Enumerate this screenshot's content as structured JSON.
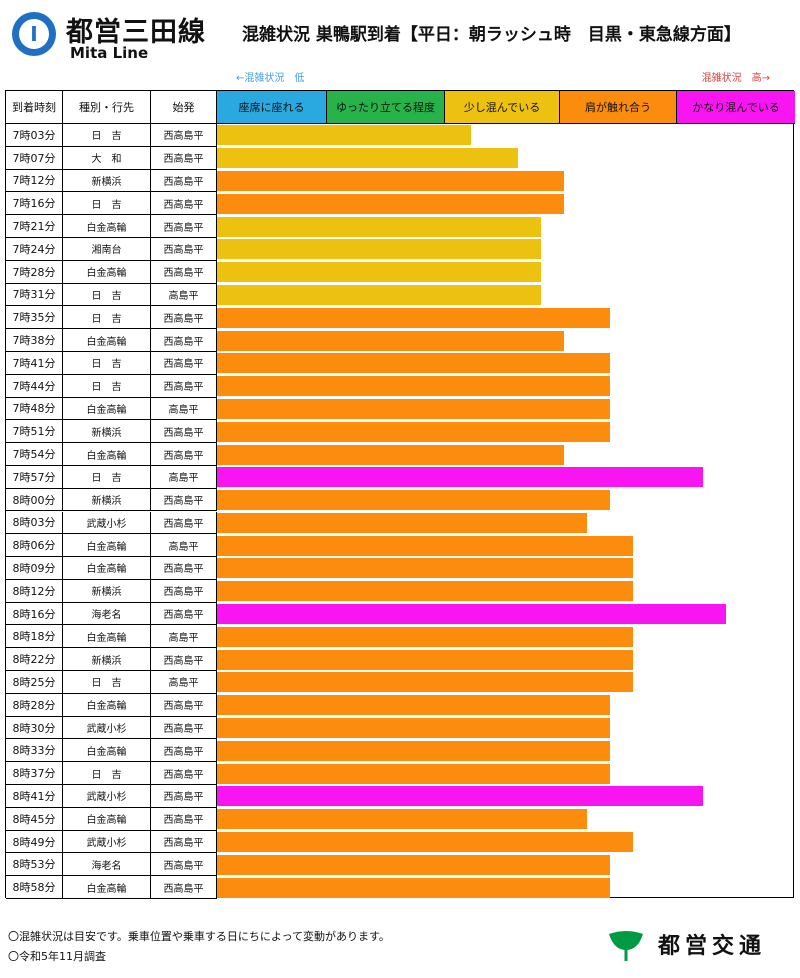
{
  "header": {
    "logo_letter": "I",
    "line_name": "都営三田線",
    "line_name_en": "Mita Line",
    "title": "混雑状況 巣鴨駅到着【平日：朝ラッシュ時　目黒・東急線方面】"
  },
  "scale": {
    "low_label": "←混雑状況　低",
    "high_label": "混雑状況　高→"
  },
  "columns": {
    "time": "到着時刻",
    "kind": "種別・行先",
    "origin": "始発"
  },
  "levels": [
    {
      "label": "座席に座れる",
      "color": "#2aa8e0"
    },
    {
      "label": "ゆったり立てる程度",
      "color": "#27b34a"
    },
    {
      "label": "少し混んでいる",
      "color": "#ecc10f"
    },
    {
      "label": "肩が触れ合う",
      "color": "#fb8c0e"
    },
    {
      "label": "かなり混んでいる",
      "color": "#f915f2"
    }
  ],
  "chart_data": {
    "type": "bar",
    "orientation": "horizontal",
    "rows": [
      {
        "time": "7時03分",
        "dest": "日　吉",
        "origin": "西高島平",
        "level": 2,
        "value": 2.2
      },
      {
        "time": "7時07分",
        "dest": "大　和",
        "origin": "西高島平",
        "level": 2,
        "value": 2.6
      },
      {
        "time": "7時12分",
        "dest": "新横浜",
        "origin": "西高島平",
        "level": 3,
        "value": 3.0
      },
      {
        "time": "7時16分",
        "dest": "日　吉",
        "origin": "西高島平",
        "level": 3,
        "value": 3.0
      },
      {
        "time": "7時21分",
        "dest": "白金高輪",
        "origin": "西高島平",
        "level": 2,
        "value": 2.8
      },
      {
        "time": "7時24分",
        "dest": "湘南台",
        "origin": "西高島平",
        "level": 2,
        "value": 2.8
      },
      {
        "time": "7時28分",
        "dest": "白金高輪",
        "origin": "西高島平",
        "level": 2,
        "value": 2.8
      },
      {
        "time": "7時31分",
        "dest": "日　吉",
        "origin": "高島平",
        "level": 2,
        "value": 2.8
      },
      {
        "time": "7時35分",
        "dest": "日　吉",
        "origin": "西高島平",
        "level": 3,
        "value": 3.4
      },
      {
        "time": "7時38分",
        "dest": "白金高輪",
        "origin": "西高島平",
        "level": 3,
        "value": 3.0
      },
      {
        "time": "7時41分",
        "dest": "日　吉",
        "origin": "西高島平",
        "level": 3,
        "value": 3.4
      },
      {
        "time": "7時44分",
        "dest": "日　吉",
        "origin": "西高島平",
        "level": 3,
        "value": 3.4
      },
      {
        "time": "7時48分",
        "dest": "白金高輪",
        "origin": "高島平",
        "level": 3,
        "value": 3.4
      },
      {
        "time": "7時51分",
        "dest": "新横浜",
        "origin": "西高島平",
        "level": 3,
        "value": 3.4
      },
      {
        "time": "7時54分",
        "dest": "白金高輪",
        "origin": "西高島平",
        "level": 3,
        "value": 3.0
      },
      {
        "time": "7時57分",
        "dest": "日　吉",
        "origin": "高島平",
        "level": 4,
        "value": 4.2
      },
      {
        "time": "8時00分",
        "dest": "新横浜",
        "origin": "西高島平",
        "level": 3,
        "value": 3.4
      },
      {
        "time": "8時03分",
        "dest": "武蔵小杉",
        "origin": "西高島平",
        "level": 3,
        "value": 3.2
      },
      {
        "time": "8時06分",
        "dest": "白金高輪",
        "origin": "高島平",
        "level": 3,
        "value": 3.6
      },
      {
        "time": "8時09分",
        "dest": "白金高輪",
        "origin": "西高島平",
        "level": 3,
        "value": 3.6
      },
      {
        "time": "8時12分",
        "dest": "新横浜",
        "origin": "西高島平",
        "level": 3,
        "value": 3.6
      },
      {
        "time": "8時16分",
        "dest": "海老名",
        "origin": "西高島平",
        "level": 4,
        "value": 4.4
      },
      {
        "time": "8時18分",
        "dest": "白金高輪",
        "origin": "高島平",
        "level": 3,
        "value": 3.6
      },
      {
        "time": "8時22分",
        "dest": "新横浜",
        "origin": "西高島平",
        "level": 3,
        "value": 3.6
      },
      {
        "time": "8時25分",
        "dest": "日　吉",
        "origin": "高島平",
        "level": 3,
        "value": 3.6
      },
      {
        "time": "8時28分",
        "dest": "白金高輪",
        "origin": "西高島平",
        "level": 3,
        "value": 3.4
      },
      {
        "time": "8時30分",
        "dest": "武蔵小杉",
        "origin": "西高島平",
        "level": 3,
        "value": 3.4
      },
      {
        "time": "8時33分",
        "dest": "白金高輪",
        "origin": "西高島平",
        "level": 3,
        "value": 3.4
      },
      {
        "time": "8時37分",
        "dest": "日　吉",
        "origin": "西高島平",
        "level": 3,
        "value": 3.4
      },
      {
        "time": "8時41分",
        "dest": "武蔵小杉",
        "origin": "西高島平",
        "level": 4,
        "value": 4.2
      },
      {
        "time": "8時45分",
        "dest": "白金高輪",
        "origin": "西高島平",
        "level": 3,
        "value": 3.2
      },
      {
        "time": "8時49分",
        "dest": "武蔵小杉",
        "origin": "西高島平",
        "level": 3,
        "value": 3.6
      },
      {
        "time": "8時53分",
        "dest": "海老名",
        "origin": "西高島平",
        "level": 3,
        "value": 3.4
      },
      {
        "time": "8時58分",
        "dest": "白金高輪",
        "origin": "西高島平",
        "level": 3,
        "value": 3.4
      }
    ],
    "xlim": [
      0,
      5
    ],
    "grid": false,
    "legend": "top"
  },
  "footer": {
    "note1": "〇混雑状況は目安です。乗車位置や乗車する日にちによって変動があります。",
    "note2": "〇令和5年11月調査",
    "brand": "都営交通",
    "brand_color": "#009944"
  }
}
